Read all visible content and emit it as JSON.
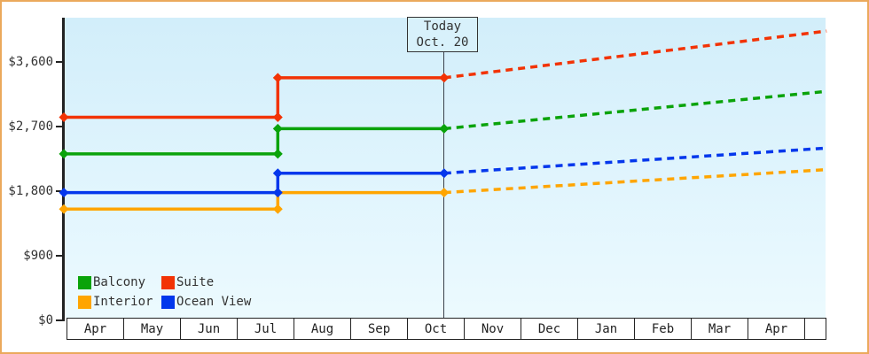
{
  "frame": {
    "border_color": "#eba95c",
    "background": "#ffffff"
  },
  "today_flag": {
    "line1": "Today",
    "line2": "Oct. 20"
  },
  "legend": {
    "items": [
      {
        "label": "Balcony",
        "color": "#0aa30a"
      },
      {
        "label": "Suite",
        "color": "#f23305"
      },
      {
        "label": "Interior",
        "color": "#ffa500"
      },
      {
        "label": "Ocean View",
        "color": "#0437ec"
      }
    ]
  },
  "chart_data": {
    "type": "line",
    "title": "",
    "x_axis": {
      "categories": [
        "Apr",
        "May",
        "Jun",
        "Jul",
        "Aug",
        "Sep",
        "Oct",
        "Nov",
        "Dec",
        "Jan",
        "Feb",
        "Mar",
        "Apr"
      ],
      "x_unit": "month index (0 = first Apr cell, fractional = day within month)",
      "today_x": 6.7,
      "today_label": "Oct. 20",
      "x_max": 13.44
    },
    "y_axis": {
      "unit": "USD",
      "ticks": [
        0,
        900,
        1800,
        2700,
        3600
      ],
      "tick_labels": [
        "$0",
        "$900",
        "$1,800",
        "$2,700",
        "$3,600"
      ],
      "range": [
        0,
        4200
      ],
      "grid": false
    },
    "style": {
      "history": "solid",
      "forecast": "dashed",
      "marker": "diamond",
      "legend_position": "bottom-left"
    },
    "series": [
      {
        "name": "Balcony",
        "color": "#0aa30a",
        "history": [
          {
            "x": 0,
            "price": 2320
          },
          {
            "x": 3.77,
            "price": 2320
          },
          {
            "x": 3.77,
            "price": 2670
          },
          {
            "x": 6.7,
            "price": 2670
          }
        ],
        "forecast": [
          {
            "x": 6.7,
            "price": 2670
          },
          {
            "x": 13.44,
            "price": 3190
          }
        ]
      },
      {
        "name": "Suite",
        "color": "#f23305",
        "history": [
          {
            "x": 0,
            "price": 2830
          },
          {
            "x": 3.77,
            "price": 2830
          },
          {
            "x": 3.77,
            "price": 3380
          },
          {
            "x": 6.7,
            "price": 3380
          }
        ],
        "forecast": [
          {
            "x": 6.7,
            "price": 3380
          },
          {
            "x": 13.44,
            "price": 4030
          }
        ]
      },
      {
        "name": "Interior",
        "color": "#ffa500",
        "history": [
          {
            "x": 0,
            "price": 1550
          },
          {
            "x": 3.77,
            "price": 1550
          },
          {
            "x": 3.77,
            "price": 1780
          },
          {
            "x": 6.7,
            "price": 1780
          }
        ],
        "forecast": [
          {
            "x": 6.7,
            "price": 1780
          },
          {
            "x": 13.44,
            "price": 2100
          }
        ]
      },
      {
        "name": "Ocean View",
        "color": "#0437ec",
        "history": [
          {
            "x": 0,
            "price": 1780
          },
          {
            "x": 3.77,
            "price": 1780
          },
          {
            "x": 3.77,
            "price": 2050
          },
          {
            "x": 6.7,
            "price": 2050
          }
        ],
        "forecast": [
          {
            "x": 6.7,
            "price": 2050
          },
          {
            "x": 13.44,
            "price": 2400
          }
        ]
      }
    ],
    "draw_order": [
      "Interior",
      "Ocean View",
      "Balcony",
      "Suite"
    ]
  }
}
